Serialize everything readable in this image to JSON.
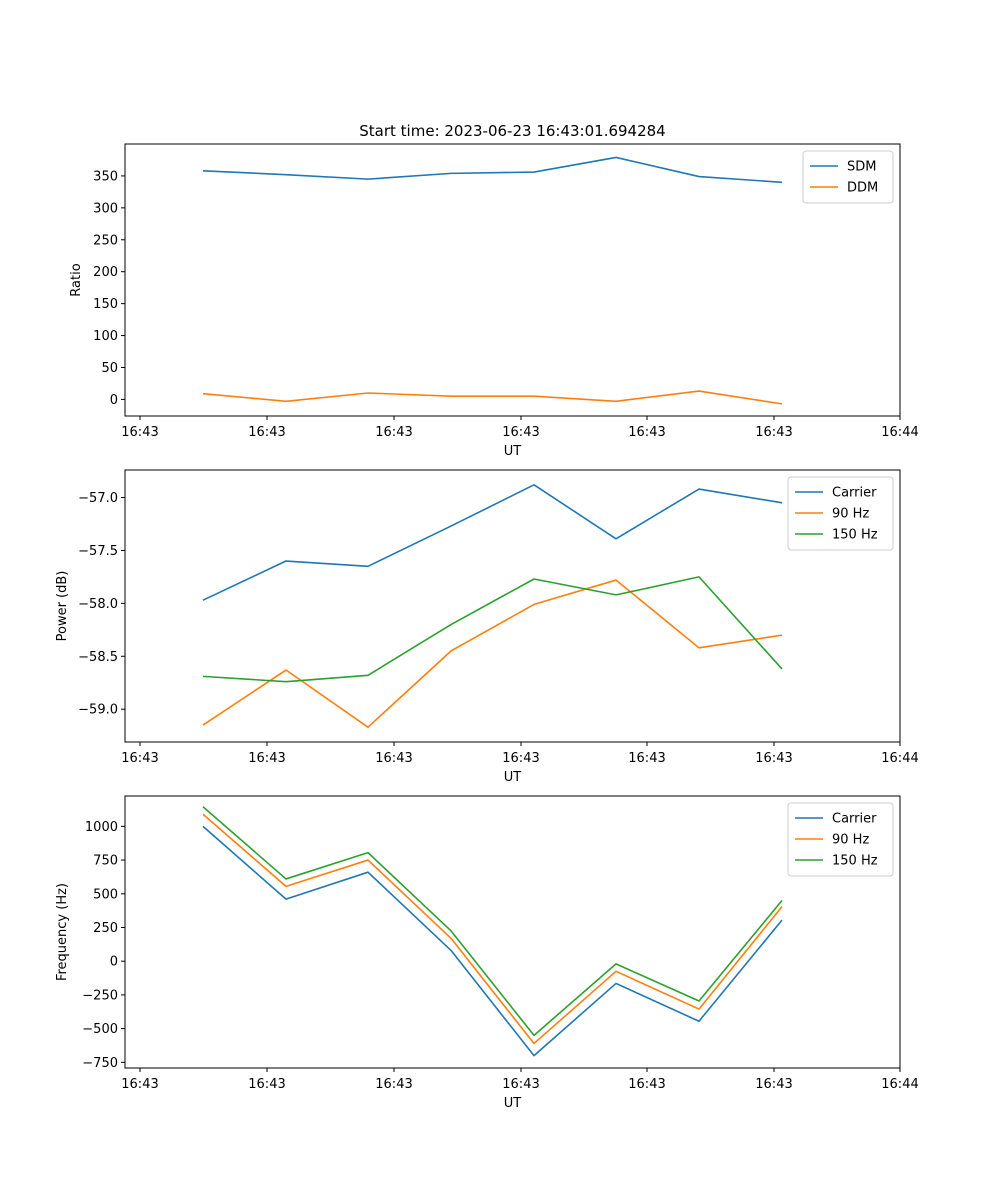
{
  "figure": {
    "title": "Start time: 2023-06-23 16:43:01.694284"
  },
  "colors": {
    "blue": "#1f77b4",
    "orange": "#ff7f0e",
    "green": "#2ca02c"
  },
  "chart_data": [
    {
      "type": "line",
      "title": "Start time: 2023-06-23 16:43:01.694284",
      "xlabel": "UT",
      "ylabel": "Ratio",
      "xtick_labels": [
        "16:43",
        "16:43",
        "16:43",
        "16:43",
        "16:43",
        "16:43",
        "16:44"
      ],
      "yticks": [
        0,
        50,
        100,
        150,
        200,
        250,
        300,
        350
      ],
      "ylim": [
        -26,
        400
      ],
      "legend": "top-right",
      "series": [
        {
          "name": "SDM",
          "color": "#1f77b4",
          "values": [
            358,
            352,
            345,
            354,
            356,
            379,
            349,
            340
          ]
        },
        {
          "name": "DDM",
          "color": "#ff7f0e",
          "values": [
            9,
            -3,
            10,
            5,
            5,
            -3,
            13,
            -7
          ]
        }
      ]
    },
    {
      "type": "line",
      "xlabel": "UT",
      "ylabel": "Power (dB)",
      "xtick_labels": [
        "16:43",
        "16:43",
        "16:43",
        "16:43",
        "16:43",
        "16:43",
        "16:44"
      ],
      "yticks": [
        -59.0,
        -58.5,
        -58.0,
        -57.5,
        -57.0
      ],
      "ytick_labels": [
        "−59.0",
        "−58.5",
        "−58.0",
        "−57.5",
        "−57.0"
      ],
      "ylim": [
        -59.31,
        -56.74
      ],
      "legend": "top-right",
      "series": [
        {
          "name": "Carrier",
          "color": "#1f77b4",
          "values": [
            -57.97,
            -57.6,
            -57.65,
            -57.27,
            -56.88,
            -57.39,
            -56.92,
            -57.05
          ]
        },
        {
          "name": "90 Hz",
          "color": "#ff7f0e",
          "values": [
            -59.15,
            -58.63,
            -59.17,
            -58.45,
            -58.01,
            -57.78,
            -58.42,
            -58.3
          ]
        },
        {
          "name": "150 Hz",
          "color": "#2ca02c",
          "values": [
            -58.69,
            -58.74,
            -58.68,
            -58.2,
            -57.77,
            -57.92,
            -57.75,
            -58.62
          ]
        }
      ]
    },
    {
      "type": "line",
      "xlabel": "UT",
      "ylabel": "Frequency (Hz)",
      "xtick_labels": [
        "16:43",
        "16:43",
        "16:43",
        "16:43",
        "16:43",
        "16:43",
        "16:44"
      ],
      "yticks": [
        -750,
        -500,
        -250,
        0,
        250,
        500,
        750,
        1000
      ],
      "ytick_labels": [
        "−750",
        "−500",
        "−250",
        "0",
        "250",
        "500",
        "750",
        "1000"
      ],
      "ylim": [
        -792,
        1225
      ],
      "legend": "top-right",
      "series": [
        {
          "name": "Carrier",
          "color": "#1f77b4",
          "values": [
            1000,
            460,
            660,
            80,
            -700,
            -165,
            -445,
            305
          ]
        },
        {
          "name": "90 Hz",
          "color": "#ff7f0e",
          "values": [
            1090,
            555,
            750,
            170,
            -610,
            -75,
            -355,
            405
          ]
        },
        {
          "name": "150 Hz",
          "color": "#2ca02c",
          "values": [
            1145,
            610,
            805,
            225,
            -550,
            -20,
            -295,
            450
          ]
        }
      ]
    }
  ]
}
